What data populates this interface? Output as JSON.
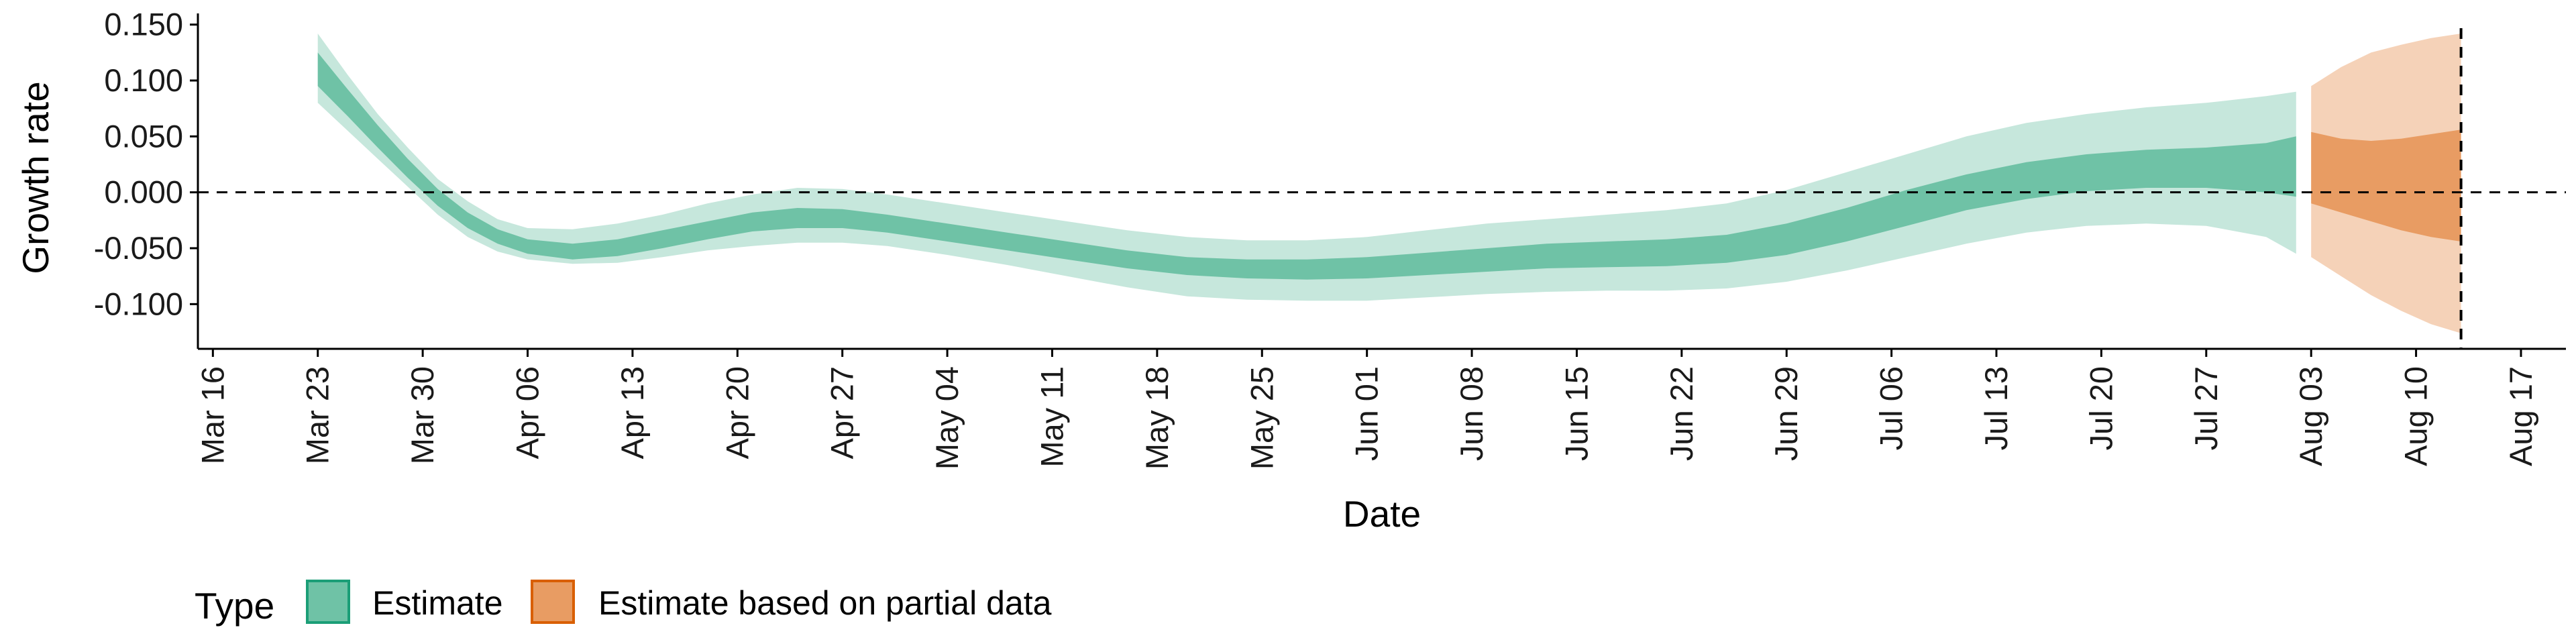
{
  "chart_data": {
    "type": "area",
    "xlabel": "Date",
    "ylabel": "Growth rate",
    "x_ticks": [
      "Mar 16",
      "Mar 23",
      "Mar 30",
      "Apr 06",
      "Apr 13",
      "Apr 20",
      "Apr 27",
      "May 04",
      "May 11",
      "May 18",
      "May 25",
      "Jun 01",
      "Jun 08",
      "Jun 15",
      "Jun 22",
      "Jun 29",
      "Jul 06",
      "Jul 13",
      "Jul 20",
      "Jul 27",
      "Aug 03",
      "Aug 10",
      "Aug 17"
    ],
    "x_tick_dates": [
      "2020-03-16",
      "2020-03-23",
      "2020-03-30",
      "2020-04-06",
      "2020-04-13",
      "2020-04-20",
      "2020-04-27",
      "2020-05-04",
      "2020-05-11",
      "2020-05-18",
      "2020-05-25",
      "2020-06-01",
      "2020-06-08",
      "2020-06-15",
      "2020-06-22",
      "2020-06-29",
      "2020-07-06",
      "2020-07-13",
      "2020-07-20",
      "2020-07-27",
      "2020-08-03",
      "2020-08-10",
      "2020-08-17"
    ],
    "y_ticks": [
      "0.150",
      "0.100",
      "0.050",
      "0.000",
      "-0.050",
      "-0.100"
    ],
    "y_tick_values": [
      0.15,
      0.1,
      0.05,
      0.0,
      -0.05,
      -0.1
    ],
    "xlim": [
      "2020-03-15",
      "2020-08-20"
    ],
    "ylim": [
      -0.14,
      0.16
    ],
    "hline": 0.0,
    "vline": "2020-08-13",
    "grid": false,
    "legend": {
      "title": "Type",
      "position": "bottom-left",
      "items": [
        {
          "label": "Estimate",
          "color": "#6fc2a6",
          "border": "#1b9e77"
        },
        {
          "label": "Estimate based on partial data",
          "color": "#e89c63",
          "border": "#d95f02"
        }
      ]
    },
    "series": [
      {
        "name": "Estimate",
        "inner_color": "#6fc2a6",
        "outer_color": "#c6e7dc",
        "points": [
          {
            "x": "2020-03-23",
            "lo90": 0.08,
            "lo50": 0.095,
            "hi50": 0.125,
            "hi90": 0.142
          },
          {
            "x": "2020-03-25",
            "lo90": 0.055,
            "lo50": 0.068,
            "hi50": 0.092,
            "hi90": 0.105
          },
          {
            "x": "2020-03-27",
            "lo90": 0.03,
            "lo50": 0.04,
            "hi50": 0.06,
            "hi90": 0.07
          },
          {
            "x": "2020-03-29",
            "lo90": 0.005,
            "lo50": 0.013,
            "hi50": 0.03,
            "hi90": 0.04
          },
          {
            "x": "2020-03-31",
            "lo90": -0.02,
            "lo50": -0.012,
            "hi50": 0.003,
            "hi90": 0.012
          },
          {
            "x": "2020-04-02",
            "lo90": -0.04,
            "lo50": -0.032,
            "hi50": -0.018,
            "hi90": -0.008
          },
          {
            "x": "2020-04-04",
            "lo90": -0.053,
            "lo50": -0.046,
            "hi50": -0.033,
            "hi90": -0.024
          },
          {
            "x": "2020-04-06",
            "lo90": -0.06,
            "lo50": -0.055,
            "hi50": -0.042,
            "hi90": -0.032
          },
          {
            "x": "2020-04-09",
            "lo90": -0.064,
            "lo50": -0.06,
            "hi50": -0.046,
            "hi90": -0.033
          },
          {
            "x": "2020-04-12",
            "lo90": -0.063,
            "lo50": -0.057,
            "hi50": -0.042,
            "hi90": -0.028
          },
          {
            "x": "2020-04-15",
            "lo90": -0.058,
            "lo50": -0.05,
            "hi50": -0.034,
            "hi90": -0.02
          },
          {
            "x": "2020-04-18",
            "lo90": -0.052,
            "lo50": -0.042,
            "hi50": -0.026,
            "hi90": -0.01
          },
          {
            "x": "2020-04-21",
            "lo90": -0.048,
            "lo50": -0.035,
            "hi50": -0.018,
            "hi90": -0.002
          },
          {
            "x": "2020-04-24",
            "lo90": -0.045,
            "lo50": -0.032,
            "hi50": -0.014,
            "hi90": 0.004
          },
          {
            "x": "2020-04-27",
            "lo90": -0.045,
            "lo50": -0.032,
            "hi50": -0.015,
            "hi90": 0.003
          },
          {
            "x": "2020-04-30",
            "lo90": -0.048,
            "lo50": -0.036,
            "hi50": -0.02,
            "hi90": -0.002
          },
          {
            "x": "2020-05-04",
            "lo90": -0.056,
            "lo50": -0.044,
            "hi50": -0.028,
            "hi90": -0.01
          },
          {
            "x": "2020-05-08",
            "lo90": -0.065,
            "lo50": -0.052,
            "hi50": -0.036,
            "hi90": -0.018
          },
          {
            "x": "2020-05-12",
            "lo90": -0.075,
            "lo50": -0.06,
            "hi50": -0.044,
            "hi90": -0.026
          },
          {
            "x": "2020-05-16",
            "lo90": -0.085,
            "lo50": -0.068,
            "hi50": -0.052,
            "hi90": -0.034
          },
          {
            "x": "2020-05-20",
            "lo90": -0.093,
            "lo50": -0.074,
            "hi50": -0.058,
            "hi90": -0.04
          },
          {
            "x": "2020-05-24",
            "lo90": -0.096,
            "lo50": -0.077,
            "hi50": -0.06,
            "hi90": -0.043
          },
          {
            "x": "2020-05-28",
            "lo90": -0.097,
            "lo50": -0.078,
            "hi50": -0.06,
            "hi90": -0.043
          },
          {
            "x": "2020-06-01",
            "lo90": -0.097,
            "lo50": -0.077,
            "hi50": -0.058,
            "hi90": -0.04
          },
          {
            "x": "2020-06-05",
            "lo90": -0.094,
            "lo50": -0.074,
            "hi50": -0.054,
            "hi90": -0.034
          },
          {
            "x": "2020-06-09",
            "lo90": -0.091,
            "lo50": -0.071,
            "hi50": -0.05,
            "hi90": -0.028
          },
          {
            "x": "2020-06-13",
            "lo90": -0.089,
            "lo50": -0.068,
            "hi50": -0.046,
            "hi90": -0.024
          },
          {
            "x": "2020-06-17",
            "lo90": -0.088,
            "lo50": -0.067,
            "hi50": -0.044,
            "hi90": -0.02
          },
          {
            "x": "2020-06-21",
            "lo90": -0.088,
            "lo50": -0.066,
            "hi50": -0.042,
            "hi90": -0.016
          },
          {
            "x": "2020-06-25",
            "lo90": -0.086,
            "lo50": -0.063,
            "hi50": -0.038,
            "hi90": -0.01
          },
          {
            "x": "2020-06-29",
            "lo90": -0.08,
            "lo50": -0.056,
            "hi50": -0.028,
            "hi90": 0.002
          },
          {
            "x": "2020-07-03",
            "lo90": -0.07,
            "lo50": -0.044,
            "hi50": -0.014,
            "hi90": 0.018
          },
          {
            "x": "2020-07-07",
            "lo90": -0.058,
            "lo50": -0.03,
            "hi50": 0.002,
            "hi90": 0.034
          },
          {
            "x": "2020-07-11",
            "lo90": -0.046,
            "lo50": -0.016,
            "hi50": 0.016,
            "hi90": 0.05
          },
          {
            "x": "2020-07-15",
            "lo90": -0.036,
            "lo50": -0.006,
            "hi50": 0.027,
            "hi90": 0.062
          },
          {
            "x": "2020-07-19",
            "lo90": -0.03,
            "lo50": 0.001,
            "hi50": 0.034,
            "hi90": 0.07
          },
          {
            "x": "2020-07-23",
            "lo90": -0.028,
            "lo50": 0.004,
            "hi50": 0.038,
            "hi90": 0.076
          },
          {
            "x": "2020-07-27",
            "lo90": -0.03,
            "lo50": 0.004,
            "hi50": 0.04,
            "hi90": 0.08
          },
          {
            "x": "2020-07-31",
            "lo90": -0.04,
            "lo50": 0.0,
            "hi50": 0.044,
            "hi90": 0.086
          },
          {
            "x": "2020-08-02",
            "lo90": -0.055,
            "lo50": -0.004,
            "hi50": 0.05,
            "hi90": 0.09
          }
        ]
      },
      {
        "name": "Estimate based on partial data",
        "inner_color": "#e89c63",
        "outer_color": "#f5d2b8",
        "points": [
          {
            "x": "2020-08-03",
            "lo90": -0.058,
            "lo50": -0.01,
            "hi50": 0.054,
            "hi90": 0.095
          },
          {
            "x": "2020-08-05",
            "lo90": -0.075,
            "lo50": -0.018,
            "hi50": 0.048,
            "hi90": 0.112
          },
          {
            "x": "2020-08-07",
            "lo90": -0.092,
            "lo50": -0.026,
            "hi50": 0.046,
            "hi90": 0.125
          },
          {
            "x": "2020-08-09",
            "lo90": -0.106,
            "lo50": -0.034,
            "hi50": 0.048,
            "hi90": 0.132
          },
          {
            "x": "2020-08-11",
            "lo90": -0.118,
            "lo50": -0.04,
            "hi50": 0.052,
            "hi90": 0.138
          },
          {
            "x": "2020-08-13",
            "lo90": -0.126,
            "lo50": -0.044,
            "hi50": 0.056,
            "hi90": 0.142
          }
        ]
      }
    ]
  }
}
